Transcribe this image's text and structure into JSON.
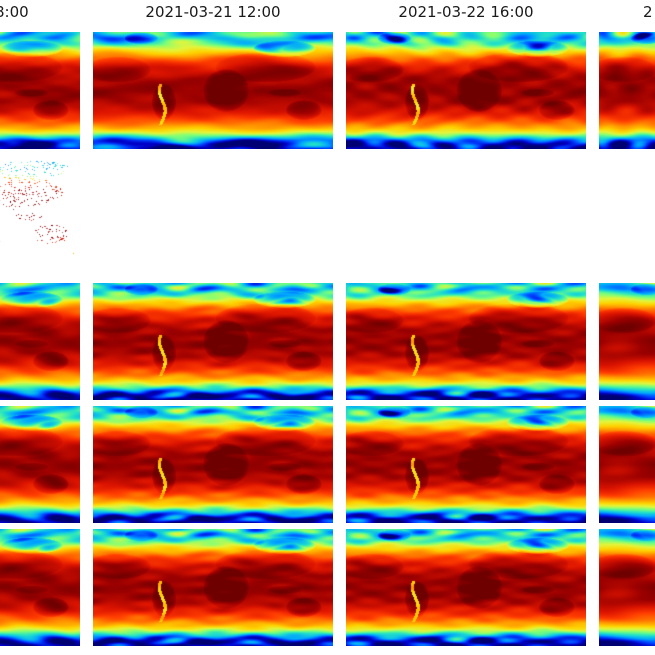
{
  "figure": {
    "background_color": "#ffffff",
    "title_color": "#1a1a1a"
  },
  "header": {
    "column_titles": [
      {
        "visible_text": "8:00"
      },
      {
        "visible_text": "2021-03-21 12:00"
      },
      {
        "visible_text": "2021-03-22 16:00"
      },
      {
        "visible_text": "2"
      }
    ]
  },
  "colormap": {
    "name": "jet",
    "stops": [
      {
        "p": 0.0,
        "c": "#000073"
      },
      {
        "p": 0.07,
        "c": "#0000c8"
      },
      {
        "p": 0.14,
        "c": "#0041ff"
      },
      {
        "p": 0.22,
        "c": "#00a4ff"
      },
      {
        "p": 0.3,
        "c": "#22e1c8"
      },
      {
        "p": 0.37,
        "c": "#7dff78"
      },
      {
        "p": 0.44,
        "c": "#e3f53c"
      },
      {
        "p": 0.52,
        "c": "#ffd200"
      },
      {
        "p": 0.62,
        "c": "#ff8c00"
      },
      {
        "p": 0.72,
        "c": "#ff3c00"
      },
      {
        "p": 0.82,
        "c": "#dc1400"
      },
      {
        "p": 0.92,
        "c": "#9b0000"
      },
      {
        "p": 1.0,
        "c": "#6e0000"
      }
    ]
  },
  "chart_data": {
    "type": "heatmap",
    "layout": "5-row by 4-column grid of panels, cropped at the left and right image edges; leftmost column shows only its right portion, rightmost column only its left sliver",
    "column_titles_visible": [
      "8:00",
      "2021-03-21 12:00",
      "2021-03-22 16:00",
      "2"
    ],
    "rows": [
      {
        "index": 1,
        "content": "global temperature-style heatmap (jet colormap), present in all 4 columns, titled with timestamps"
      },
      {
        "index": 2,
        "content": "sparse colored point scatter (station-observation style) on white background, first column only"
      },
      {
        "index": 3,
        "content": "global temperature-style heatmap (jet colormap), present in all 4 columns"
      },
      {
        "index": 4,
        "content": "global temperature-style heatmap (jet colormap), present in all 4 columns"
      },
      {
        "index": 5,
        "content": "global temperature-style heatmap (jet colormap), present in all 4 columns"
      }
    ],
    "colormap": "jet",
    "colorbar": "none visible",
    "axis_labels": "none visible",
    "numeric_values": "none visible (no ticks, gridlines or colorbar labels)"
  }
}
